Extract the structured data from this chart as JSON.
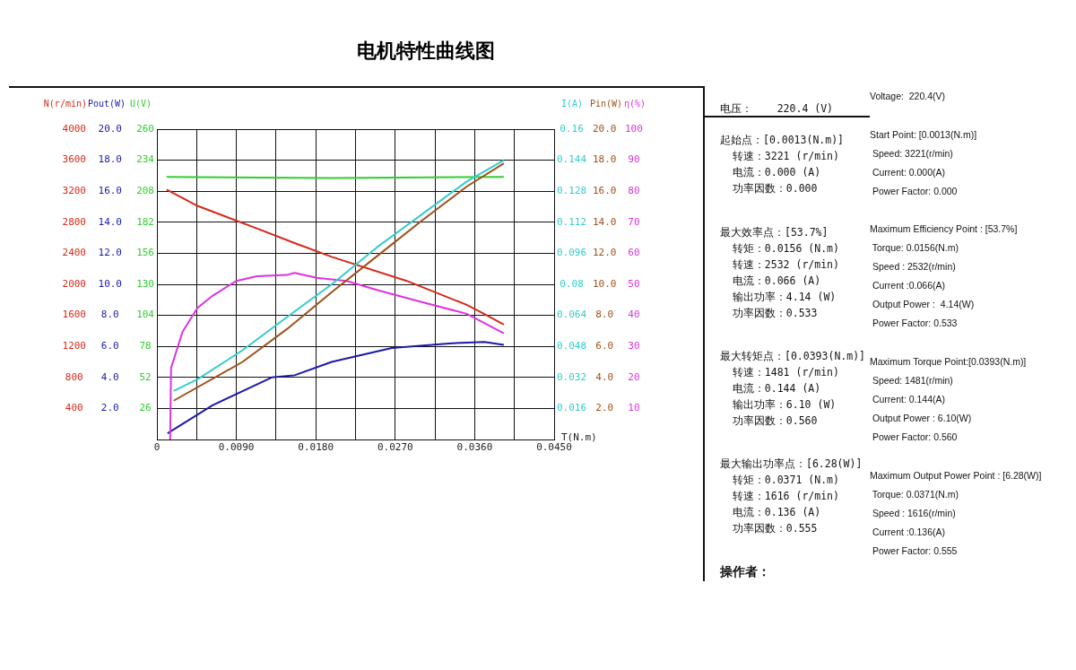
{
  "chart_data": [
    {
      "type": "line",
      "title": "电机特性曲线图",
      "xlabel": "T(N.m)",
      "ylabel": "N(r/min)",
      "y2label": "Pout(W)",
      "y3label": "U(V)",
      "xlim": [
        0,
        0.045
      ],
      "xticks": [
        {
          "value": 0,
          "label": "0"
        },
        {
          "value": 0.0045,
          "label": null
        },
        {
          "value": 0.009,
          "label": "0.0090"
        },
        {
          "value": 0.0135,
          "label": null
        },
        {
          "value": 0.018,
          "label": "0.0180"
        },
        {
          "value": 0.0225,
          "label": null
        },
        {
          "value": 0.027,
          "label": "0.0270"
        },
        {
          "value": 0.0315,
          "label": null
        },
        {
          "value": 0.036,
          "label": "0.0360"
        },
        {
          "value": 0.0405,
          "label": null
        },
        {
          "value": 0.045,
          "label": "0.0450"
        }
      ],
      "ylim": [
        0,
        4000
      ],
      "yticks": [
        400,
        800,
        1200,
        1600,
        2000,
        2400,
        2800,
        3200,
        3600,
        4000
      ],
      "y2lim": [
        0,
        20
      ],
      "y2ticks": [
        {
          "value": 2,
          "label": "2.0"
        },
        {
          "value": 4,
          "label": "4.0"
        },
        {
          "value": 6,
          "label": "6.0"
        },
        {
          "value": 8,
          "label": "8.0"
        },
        {
          "value": 10,
          "label": "10.0"
        },
        {
          "value": 12,
          "label": "12.0"
        },
        {
          "value": 14,
          "label": "14.0"
        },
        {
          "value": 16,
          "label": "16.0"
        },
        {
          "value": 18,
          "label": "18.0"
        },
        {
          "value": 20,
          "label": "20.0"
        }
      ],
      "y3lim": [
        0,
        260
      ],
      "y3ticks": [
        26,
        52,
        78,
        104,
        130,
        156,
        182,
        208,
        234,
        260
      ],
      "grid": true,
      "legend": false,
      "marker": "none",
      "line_style": "solid",
      "series": [
        {
          "color": "#d42a1a",
          "x": [
            0.0011,
            0.0046,
            0.0113,
            0.0156,
            0.0198,
            0.0283,
            0.0351,
            0.0371,
            0.0393
          ],
          "values": [
            3221,
            3011,
            2721,
            2532,
            2354,
            2044,
            1735,
            1616,
            1481
          ]
        },
        {
          "color": "#1a1aa8",
          "axis": "y2",
          "x": [
            0.0012,
            0.0063,
            0.013,
            0.0156,
            0.0198,
            0.0266,
            0.0334,
            0.0371,
            0.0393
          ],
          "values": [
            0.4,
            2.2,
            4.0,
            4.14,
            5.0,
            5.9,
            6.2,
            6.28,
            6.1
          ]
        },
        {
          "color": "#33cc33",
          "axis": "y3",
          "x": [
            0.0011,
            0.02,
            0.0393
          ],
          "values": [
            220,
            219,
            220
          ]
        }
      ],
      "annotations": [
        "电压：    220.4 (V)",
        "起始点：[0.0013(N.m)]\n  转速：3221 (r/min)\n  电流：0.000 (A)\n  功率因数：0.000",
        "最大效率点：[53.7%]\n  转矩：0.0156 (N.m)\n  转速：2532 (r/min)\n  电流：0.066 (A)\n  输出功率：4.14 (W)\n  功率因数：0.533",
        "最大转矩点：[0.0393(N.m)]\n  转速：1481 (r/min)\n  电流：0.144 (A)\n  输出功率：6.10 (W)\n  功率因数：0.560",
        "最大输出功率点：[6.28(W)]\n  转矩：0.0371 (N.m)\n  转速：1616 (r/min)\n  电流：0.136 (A)\n  功率因数：0.555",
        "操作者：",
        "Voltage:  220.4(V)",
        "Start Point: [0.0013(N.m)]\n Speed: 3221(r/min)\n Current: 0.000(A)\n Power Factor: 0.000",
        "Maximum Efficiency Point : [53.7%]\n Torque: 0.0156(N.m)\n Speed : 2532(r/min)\n Current :0.066(A)\n Output Power :  4.14(W)\n Power Factor: 0.533",
        "Maximum Torque Point:[0.0393(N.m)]\n Speed: 1481(r/min)\n Current: 0.144(A)\n Output Power : 6.10(W)\n Power Factor: 0.560",
        "Maximum Output Power Point : [6.28(W)]\n Torque: 0.0371(N.m)\n Speed : 1616(r/min)\n Current :0.136(A)\n Power Factor: 0.555"
      ]
    },
    {
      "type": "line",
      "ylabel": "I(A)",
      "y2label": "Pin(W)",
      "y3label": "η(%)",
      "tick_labels": "y",
      "xlim": [
        0,
        0.045
      ],
      "ylim": [
        0,
        0.16
      ],
      "yticks": [
        0.016,
        0.032,
        0.048,
        0.064,
        0.08,
        0.096,
        0.112,
        0.128,
        0.144,
        0.16
      ],
      "y2lim": [
        0,
        20
      ],
      "y2ticks": [
        {
          "value": 2,
          "label": "2.0"
        },
        {
          "value": 4,
          "label": "4.0"
        },
        {
          "value": 6,
          "label": "6.0"
        },
        {
          "value": 8,
          "label": "8.0"
        },
        {
          "value": 10,
          "label": "10.0"
        },
        {
          "value": 12,
          "label": "12.0"
        },
        {
          "value": 14,
          "label": "14.0"
        },
        {
          "value": 16,
          "label": "16.0"
        },
        {
          "value": 18,
          "label": "18.0"
        },
        {
          "value": 20,
          "label": "20.0"
        }
      ],
      "y3lim": [
        0,
        100
      ],
      "y3ticks": [
        10,
        20,
        30,
        40,
        50,
        60,
        70,
        80,
        90,
        100
      ],
      "legend": false,
      "marker": "none",
      "line_style": "solid",
      "series": [
        {
          "color": "#33cccc",
          "x": [
            0.0019,
            0.0046,
            0.0097,
            0.0147,
            0.0198,
            0.0249,
            0.03,
            0.0351,
            0.0393
          ],
          "values": [
            0.025,
            0.031,
            0.046,
            0.063,
            0.08,
            0.099,
            0.116,
            0.133,
            0.144
          ]
        },
        {
          "color": "#a0501a",
          "axis": "y2",
          "x": [
            0.0019,
            0.0097,
            0.0147,
            0.0198,
            0.0249,
            0.03,
            0.0351,
            0.0393
          ],
          "values": [
            2.5,
            5.0,
            7.1,
            9.5,
            11.8,
            14.1,
            16.3,
            17.8
          ]
        },
        {
          "color": "#dd33dd",
          "axis": "y3",
          "x": [
            0.0015,
            0.0016,
            0.0029,
            0.0046,
            0.0063,
            0.009,
            0.0113,
            0.0147,
            0.0156,
            0.0181,
            0.0215,
            0.0249,
            0.03,
            0.0351,
            0.0393
          ],
          "values": [
            0,
            23,
            34.7,
            42.4,
            46.3,
            51.1,
            52.6,
            53.0,
            53.7,
            52.1,
            51.1,
            48.2,
            44.3,
            40.5,
            34.2
          ]
        }
      ]
    }
  ]
}
